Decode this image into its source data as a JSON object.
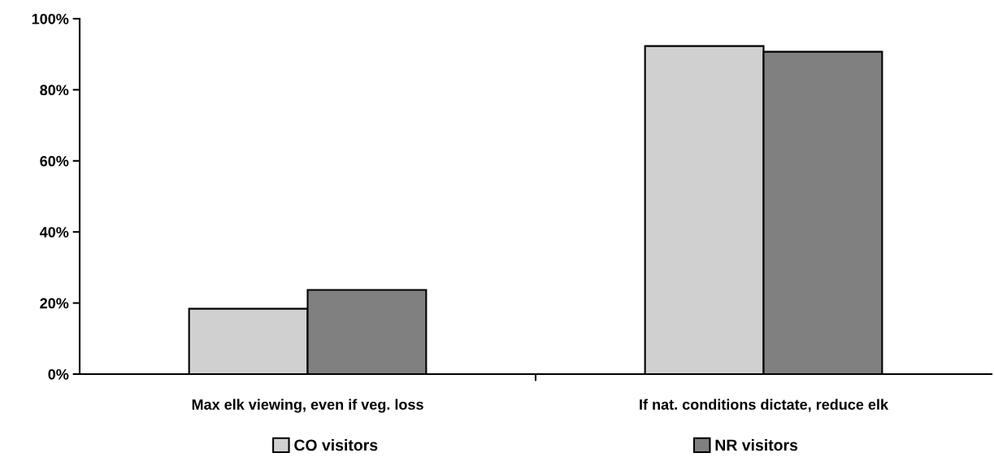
{
  "chart_data": {
    "type": "bar",
    "categories": [
      "Max elk viewing, even if veg. loss",
      "If nat. conditions dictate, reduce elk"
    ],
    "series": [
      {
        "name": "CO visitors",
        "color": "#d0d0d0",
        "values": [
          18.4,
          92.3
        ]
      },
      {
        "name": "NR visitors",
        "color": "#808080",
        "values": [
          23.7,
          90.7
        ]
      }
    ],
    "ylim": [
      0,
      100
    ],
    "yticks": [
      {
        "value": 0,
        "label": "0%"
      },
      {
        "value": 20,
        "label": "20%"
      },
      {
        "value": 40,
        "label": "40%"
      },
      {
        "value": 60,
        "label": "60%"
      },
      {
        "value": 80,
        "label": "80%"
      },
      {
        "value": 100,
        "label": "100%"
      }
    ],
    "grid": false,
    "legend": "bottom"
  }
}
